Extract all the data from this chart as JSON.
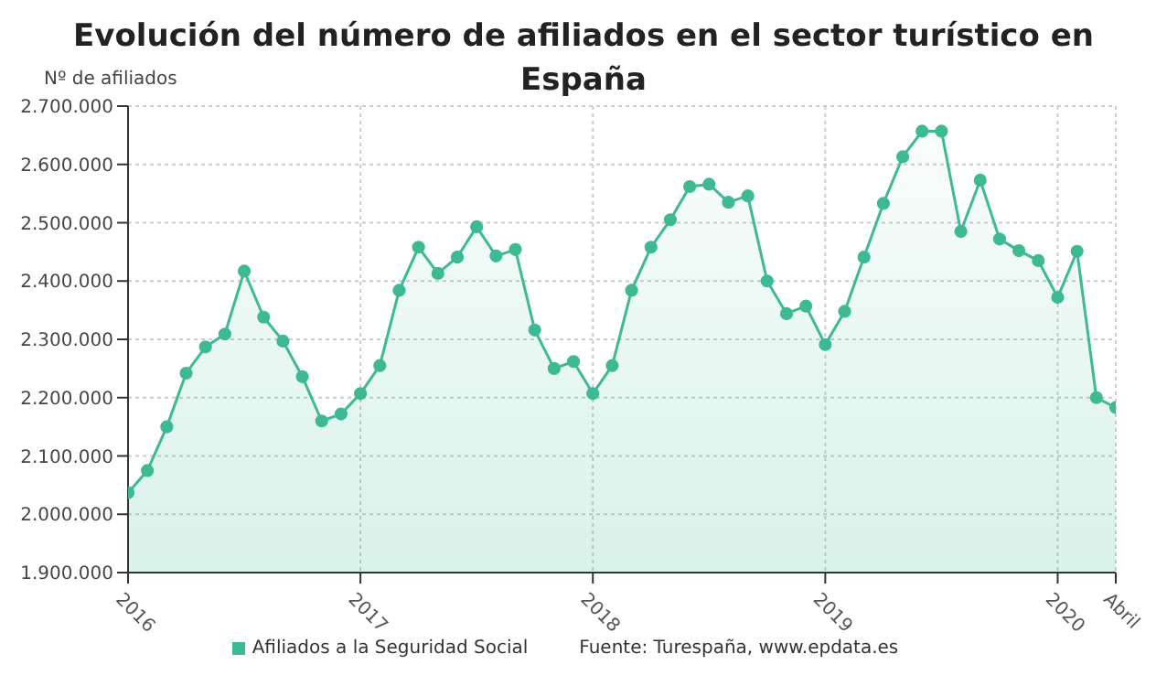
{
  "chart_data": {
    "type": "area",
    "title": "Evolución del número de afiliados en el sector turístico en España",
    "ylabel": "Nº de afiliados",
    "x": [
      "2016-01",
      "2016-02",
      "2016-03",
      "2016-04",
      "2016-05",
      "2016-06",
      "2016-07",
      "2016-08",
      "2016-09",
      "2016-10",
      "2016-11",
      "2016-12",
      "2017-01",
      "2017-02",
      "2017-03",
      "2017-04",
      "2017-05",
      "2017-06",
      "2017-07",
      "2017-08",
      "2017-09",
      "2017-10",
      "2017-11",
      "2017-12",
      "2018-01",
      "2018-02",
      "2018-03",
      "2018-04",
      "2018-05",
      "2018-06",
      "2018-07",
      "2018-08",
      "2018-09",
      "2018-10",
      "2018-11",
      "2018-12",
      "2019-01",
      "2019-02",
      "2019-03",
      "2019-04",
      "2019-05",
      "2019-06",
      "2019-07",
      "2019-08",
      "2019-09",
      "2019-10",
      "2019-11",
      "2019-12",
      "2020-01",
      "2020-02",
      "2020-03",
      "2020-04"
    ],
    "series": [
      {
        "name": "Afiliados a la Seguridad Social",
        "color": "#3dba94",
        "values": [
          2037000,
          2075000,
          2150000,
          2242000,
          2287000,
          2309000,
          2417000,
          2338000,
          2297000,
          2236000,
          2160000,
          2172000,
          2207000,
          2255000,
          2384000,
          2458000,
          2413000,
          2441000,
          2493000,
          2443000,
          2454000,
          2316000,
          2250000,
          2262000,
          2207000,
          2255000,
          2384000,
          2458000,
          2505000,
          2562000,
          2566000,
          2535000,
          2546000,
          2400000,
          2344000,
          2357000,
          2291000,
          2348000,
          2441000,
          2533000,
          2613000,
          2657000,
          2657000,
          2485000,
          2573000,
          2472000,
          2452000,
          2435000,
          2372000,
          2451000,
          2200000,
          2183000
        ]
      }
    ],
    "xlim": [
      "2016-01",
      "2020-04"
    ],
    "xticks": [
      {
        "value": "2016-01",
        "label": "2016"
      },
      {
        "value": "2017-01",
        "label": "2017"
      },
      {
        "value": "2018-01",
        "label": "2018"
      },
      {
        "value": "2019-01",
        "label": "2019"
      },
      {
        "value": "2020-01",
        "label": "2020"
      },
      {
        "value": "2020-04",
        "label": "Abril"
      }
    ],
    "ylim": [
      1900000,
      2700000
    ],
    "yticks": [
      {
        "value": 1900000,
        "label": "1.900.000"
      },
      {
        "value": 2000000,
        "label": "2.000.000"
      },
      {
        "value": 2100000,
        "label": "2.100.000"
      },
      {
        "value": 2200000,
        "label": "2.200.000"
      },
      {
        "value": 2300000,
        "label": "2.300.000"
      },
      {
        "value": 2400000,
        "label": "2.400.000"
      },
      {
        "value": 2500000,
        "label": "2.500.000"
      },
      {
        "value": 2600000,
        "label": "2.600.000"
      },
      {
        "value": 2700000,
        "label": "2.700.000"
      }
    ],
    "grid": true,
    "legend": "bottom",
    "marker": "circle",
    "line_style": "solid",
    "annotations": [
      "Fuente: Turespaña, www.epdata.es"
    ]
  }
}
